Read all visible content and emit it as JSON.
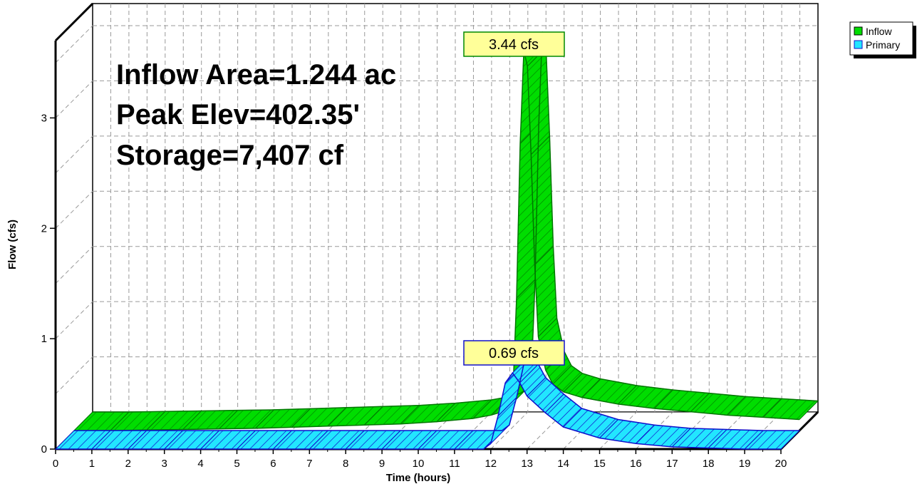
{
  "chart_data": {
    "type": "area",
    "xlabel": "Time  (hours)",
    "ylabel": "Flow  (cfs)",
    "xlim": [
      0,
      20
    ],
    "ylim": [
      0,
      3.7
    ],
    "x_ticks": [
      "0",
      "1",
      "2",
      "3",
      "4",
      "5",
      "6",
      "7",
      "8",
      "9",
      "10",
      "11",
      "12",
      "13",
      "14",
      "15",
      "16",
      "17",
      "18",
      "19",
      "20"
    ],
    "y_ticks": [
      "0",
      "1",
      "2",
      "3"
    ],
    "grid": true,
    "legend_position": "top-right",
    "annotations": [
      "Inflow Area=1.244 ac",
      "Peak Elev=402.35'",
      "Storage=7,407 cf"
    ],
    "peak_labels": [
      "3.44 cfs",
      "0.69 cfs"
    ],
    "series": [
      {
        "name": "Inflow",
        "color": "#00dd00",
        "peak_label": "3.44 cfs",
        "x": [
          0,
          1,
          2,
          3,
          4,
          5,
          6,
          7,
          8,
          9,
          10,
          11,
          11.5,
          11.8,
          12.0,
          12.1,
          12.2,
          12.3,
          12.4,
          12.5,
          12.6,
          12.7,
          12.8,
          13.0,
          13.2,
          13.5,
          14,
          15,
          16,
          17,
          18,
          19,
          20
        ],
        "y": [
          0.0,
          0.0,
          0.005,
          0.01,
          0.015,
          0.02,
          0.03,
          0.04,
          0.05,
          0.06,
          0.08,
          0.11,
          0.14,
          0.17,
          0.22,
          0.35,
          1.2,
          2.6,
          3.44,
          3.3,
          2.5,
          1.5,
          0.85,
          0.55,
          0.42,
          0.35,
          0.3,
          0.24,
          0.2,
          0.17,
          0.14,
          0.12,
          0.1
        ]
      },
      {
        "name": "Primary",
        "color": "#00ffff",
        "peak_label": "0.69 cfs",
        "x": [
          0,
          1,
          2,
          3,
          4,
          5,
          6,
          7,
          8,
          9,
          10,
          11,
          11.8,
          12.0,
          12.2,
          12.4,
          12.6,
          12.8,
          13.0,
          13.5,
          14,
          15,
          16,
          17,
          18,
          19,
          20
        ],
        "y": [
          0,
          0,
          0,
          0,
          0,
          0,
          0,
          0,
          0,
          0,
          0,
          0,
          0,
          0.05,
          0.3,
          0.6,
          0.69,
          0.6,
          0.48,
          0.33,
          0.2,
          0.1,
          0.05,
          0.02,
          0.01,
          0.0,
          0.0
        ]
      }
    ]
  }
}
